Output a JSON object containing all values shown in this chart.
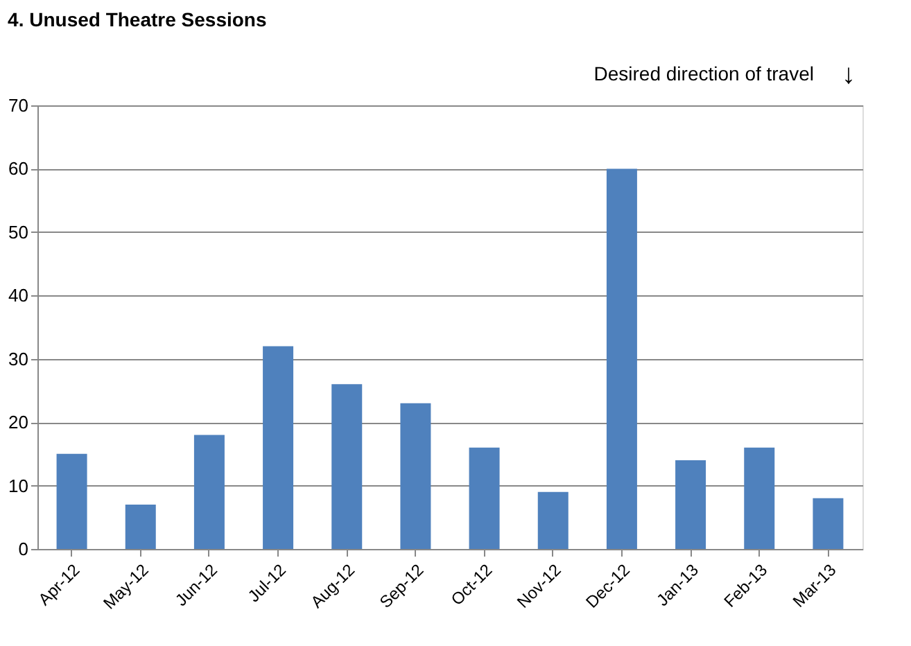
{
  "chart_data": {
    "type": "bar",
    "title": "4. Unused Theatre Sessions",
    "annotations": [
      "Desired direction of travel",
      "↓"
    ],
    "categories": [
      "Apr-12",
      "May-12",
      "Jun-12",
      "Jul-12",
      "Aug-12",
      "Sep-12",
      "Oct-12",
      "Nov-12",
      "Dec-12",
      "Jan-13",
      "Feb-13",
      "Mar-13"
    ],
    "values": [
      15,
      7,
      18,
      32,
      26,
      23,
      16,
      9,
      60,
      14,
      16,
      8
    ],
    "color": "#4f81bd",
    "ylim": [
      0,
      70
    ],
    "yticks": [
      0,
      10,
      20,
      30,
      40,
      50,
      60,
      70
    ],
    "grid": "y"
  }
}
